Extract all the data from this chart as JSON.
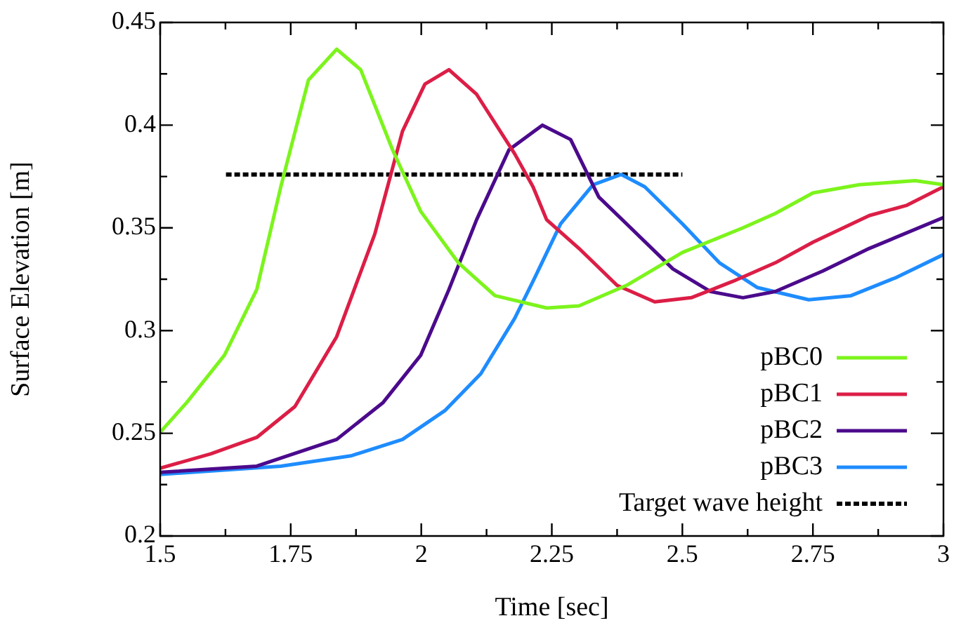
{
  "chart_data": {
    "type": "line",
    "xlabel": "Time [sec]",
    "ylabel": "Surface Elevation [m]",
    "xlim": [
      1.5,
      3
    ],
    "ylim": [
      0.2,
      0.45
    ],
    "xticks": [
      1.5,
      {
        "value": 1.625,
        "label": null
      },
      1.75,
      {
        "value": 1.875,
        "label": null
      },
      2,
      {
        "value": 2.125,
        "label": null
      },
      2.25,
      {
        "value": 2.375,
        "label": null
      },
      2.5,
      {
        "value": 2.625,
        "label": null
      },
      2.75,
      {
        "value": 2.875,
        "label": null
      },
      3
    ],
    "yticks": [
      0.2,
      {
        "value": 0.225,
        "label": null
      },
      0.25,
      {
        "value": 0.275,
        "label": null
      },
      0.3,
      {
        "value": 0.325,
        "label": null
      },
      0.35,
      {
        "value": 0.375,
        "label": null
      },
      0.4,
      {
        "value": 0.425,
        "label": null
      },
      0.45
    ],
    "grid": false,
    "legend": "bottom right",
    "marker": "none",
    "series": [
      {
        "name": "pBC0",
        "color": "#7cf41c",
        "x": [
          1.5,
          1.551,
          1.623,
          1.685,
          1.731,
          1.784,
          1.838,
          1.884,
          1.945,
          1.999,
          2.071,
          2.141,
          2.24,
          2.302,
          2.393,
          2.5,
          2.616,
          2.678,
          2.75,
          2.839,
          2.946,
          3.0
        ],
        "values": [
          0.2505,
          0.265,
          0.288,
          0.32,
          0.37,
          0.422,
          0.437,
          0.427,
          0.388,
          0.358,
          0.333,
          0.317,
          0.311,
          0.312,
          0.322,
          0.338,
          0.35,
          0.357,
          0.367,
          0.371,
          0.373,
          0.371
        ]
      },
      {
        "name": "pBC1",
        "color": "#dc1e46",
        "x": [
          1.5,
          1.597,
          1.685,
          1.758,
          1.838,
          1.911,
          1.964,
          2.007,
          2.053,
          2.106,
          2.179,
          2.214,
          2.24,
          2.302,
          2.375,
          2.447,
          2.517,
          2.597,
          2.678,
          2.75,
          2.858,
          2.93,
          3.0
        ],
        "values": [
          0.233,
          0.24,
          0.248,
          0.263,
          0.297,
          0.347,
          0.397,
          0.42,
          0.427,
          0.415,
          0.386,
          0.37,
          0.354,
          0.34,
          0.322,
          0.314,
          0.316,
          0.324,
          0.333,
          0.343,
          0.356,
          0.361,
          0.37
        ]
      },
      {
        "name": "pBC2",
        "color": "#4b0a8c",
        "x": [
          1.5,
          1.685,
          1.838,
          1.927,
          1.999,
          2.053,
          2.106,
          2.168,
          2.232,
          2.286,
          2.34,
          2.393,
          2.482,
          2.554,
          2.616,
          2.678,
          2.769,
          2.858,
          3.0
        ],
        "values": [
          0.231,
          0.234,
          0.247,
          0.265,
          0.288,
          0.32,
          0.354,
          0.388,
          0.4,
          0.393,
          0.365,
          0.352,
          0.33,
          0.319,
          0.316,
          0.319,
          0.329,
          0.34,
          0.355
        ]
      },
      {
        "name": "pBC3",
        "color": "#1e8cff",
        "x": [
          1.5,
          1.731,
          1.865,
          1.964,
          2.045,
          2.114,
          2.179,
          2.214,
          2.267,
          2.329,
          2.383,
          2.428,
          2.5,
          2.571,
          2.643,
          2.742,
          2.823,
          2.911,
          3.0
        ],
        "values": [
          0.23,
          0.234,
          0.239,
          0.247,
          0.261,
          0.279,
          0.306,
          0.324,
          0.352,
          0.371,
          0.376,
          0.37,
          0.352,
          0.333,
          0.321,
          0.315,
          0.317,
          0.326,
          0.337
        ]
      },
      {
        "name": "Target wave height",
        "color": "#000000",
        "line_style": "dotted",
        "x": [
          1.626,
          2.5
        ],
        "values": [
          0.376,
          0.376
        ]
      }
    ]
  }
}
